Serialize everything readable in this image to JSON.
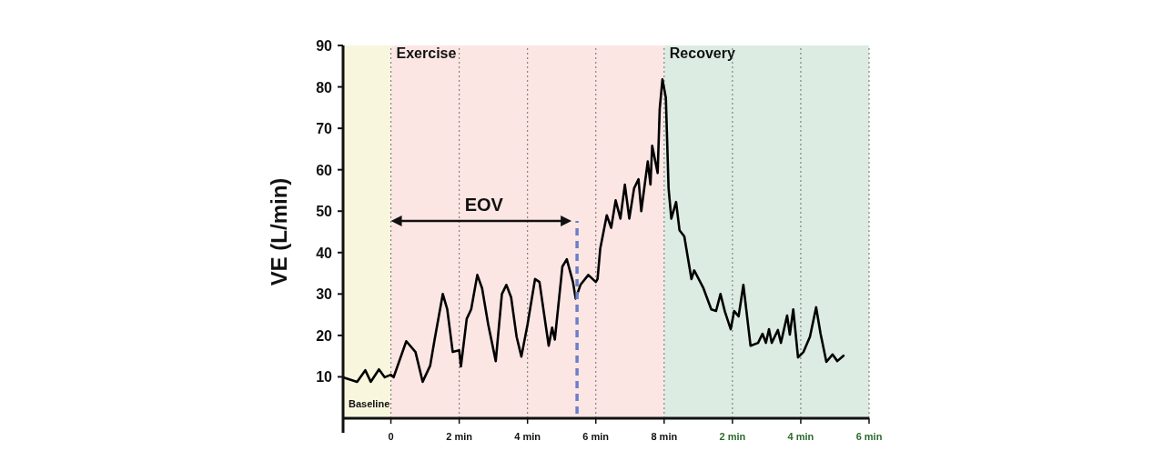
{
  "chart_data": {
    "type": "line",
    "ylabel": "VE (L/min)",
    "xlim": [
      -1.4,
      14
    ],
    "xticks": [
      {
        "value": 0,
        "label": "0"
      },
      {
        "value": 2,
        "label": "2 min"
      },
      {
        "value": 4,
        "label": "4 min"
      },
      {
        "value": 6,
        "label": "6 min"
      },
      {
        "value": 8,
        "label": "8 min"
      }
    ],
    "x2lim": [
      -9.4,
      6
    ],
    "x2ticks": [
      {
        "value": 2,
        "label": "2 min"
      },
      {
        "value": 4,
        "label": "4 min"
      },
      {
        "value": 6,
        "label": "6 min"
      }
    ],
    "ylim": [
      0,
      90
    ],
    "yticks": [
      10,
      20,
      30,
      40,
      50,
      60,
      70,
      80,
      90
    ],
    "grid": "x",
    "marker": "none",
    "line_style": "solid",
    "series": [
      {
        "color": "#000000",
        "x": [
          -1.4,
          -0.99,
          -0.75,
          -0.59,
          -0.35,
          -0.18,
          0,
          0.08,
          0.45,
          0.72,
          0.93,
          1.15,
          1.28,
          1.52,
          1.65,
          1.81,
          2.0,
          2.05,
          2.22,
          2.35,
          2.53,
          2.67,
          2.85,
          3.07,
          3.25,
          3.38,
          3.52,
          3.68,
          3.82,
          4.0,
          4.22,
          4.35,
          4.53,
          4.62,
          4.72,
          4.8,
          5.02,
          5.15,
          5.33,
          5.41,
          5.55,
          5.78,
          6.0,
          6.05,
          6.13,
          6.32,
          6.45,
          6.58,
          6.72,
          6.85,
          6.98,
          7.12,
          7.25,
          7.33,
          7.52,
          7.6,
          7.65,
          7.81,
          7.87,
          7.95,
          8.05,
          8.13,
          8.21,
          8.35,
          8.45,
          8.59,
          8.8,
          8.88,
          9.15,
          9.38,
          9.52,
          9.65,
          9.78,
          9.95,
          10.05,
          10.18,
          10.32,
          10.53,
          10.75,
          10.88,
          10.98,
          11.07,
          11.15,
          11.33,
          11.42,
          11.6,
          11.68,
          11.78,
          11.92,
          12.08,
          12.27,
          12.45,
          12.58,
          12.75,
          12.93,
          13.07,
          13.25
        ],
        "values": [
          9.9,
          8.8,
          11.6,
          8.8,
          11.8,
          9.9,
          10.5,
          9.9,
          18.6,
          16,
          8.8,
          12.7,
          19,
          30,
          26.3,
          16,
          16.4,
          12.5,
          24,
          26.3,
          34.6,
          31.4,
          22.6,
          13.8,
          30,
          32.2,
          29.2,
          19.7,
          14.9,
          22.6,
          33.6,
          32.9,
          22.6,
          17.5,
          21.9,
          19,
          36.6,
          38.4,
          32.9,
          28.9,
          32.2,
          34.6,
          32.9,
          33.6,
          41,
          49,
          46,
          52.6,
          48.2,
          56.4,
          48.2,
          55.5,
          57.7,
          50,
          62,
          56.4,
          65.8,
          59.2,
          74.6,
          81.8,
          77.4,
          55.5,
          48.2,
          52.2,
          45.4,
          43.9,
          33.6,
          35.7,
          31.4,
          26.3,
          25.9,
          30,
          25.7,
          21.5,
          25.9,
          24.6,
          32.2,
          17.5,
          18.2,
          20.4,
          18.2,
          21.5,
          18.2,
          21.3,
          18.2,
          24.8,
          20.2,
          26.3,
          14.7,
          16,
          19.7,
          26.8,
          20.4,
          13.6,
          15.4,
          13.8,
          15.1
        ]
      }
    ],
    "bands": [
      {
        "axis": "x",
        "from": -1.4,
        "to": 0,
        "label": "Baseline",
        "color": "#f8f6dc"
      },
      {
        "axis": "x",
        "from": 0,
        "to": 8,
        "label": "Exercise",
        "color": "#fce6e4"
      },
      {
        "axis": "x",
        "from": 8,
        "to": 14,
        "label": "Recovery",
        "color": "#dcece2"
      }
    ],
    "ref_lines": [
      {
        "axis": "x",
        "value": 5.45,
        "color": "#6a7fc8",
        "line_style": "dashed"
      }
    ],
    "annotations": [
      "EOV"
    ]
  }
}
